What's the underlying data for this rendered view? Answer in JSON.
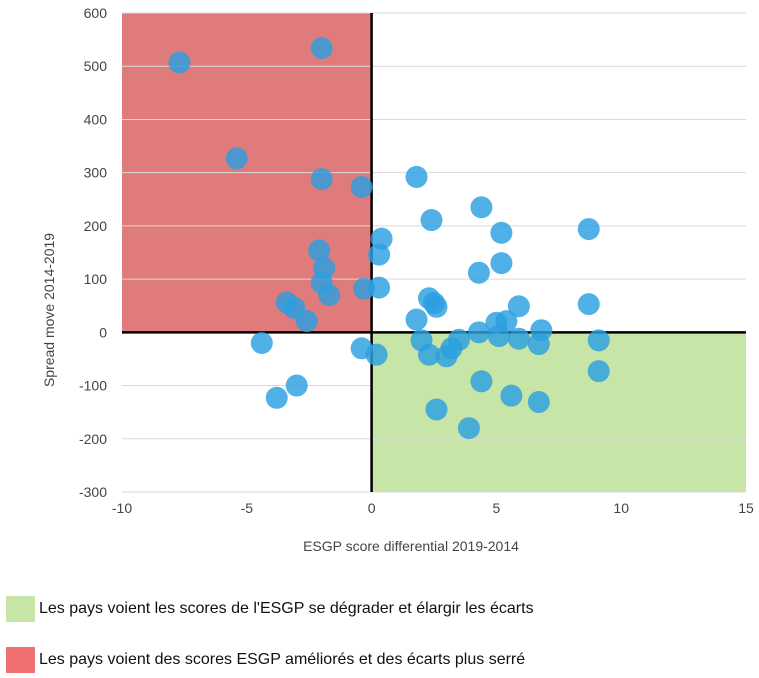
{
  "chart_data": {
    "type": "scatter",
    "xlabel": "ESGP score differential 2019-2014",
    "ylabel": "Spread move 2014-2019",
    "xlim": [
      -10,
      15
    ],
    "ylim": [
      -300,
      600
    ],
    "x_ticks": [
      -10,
      -5,
      0,
      5,
      10,
      15
    ],
    "y_ticks": [
      600,
      500,
      400,
      300,
      200,
      100,
      0,
      -100,
      -200,
      -300
    ],
    "grid": true,
    "colors": {
      "points": "#2b9fe0",
      "quadrant_top_left": "#e07b7b",
      "quadrant_bottom_right": "#c6e5a6",
      "axis": "#000000",
      "grid": "#d9d9d9"
    },
    "points": [
      {
        "x": -7.7,
        "y": 507
      },
      {
        "x": -2.0,
        "y": 534
      },
      {
        "x": -5.4,
        "y": 327
      },
      {
        "x": -2.0,
        "y": 288
      },
      {
        "x": -0.4,
        "y": 273
      },
      {
        "x": -2.1,
        "y": 154
      },
      {
        "x": -1.9,
        "y": 121
      },
      {
        "x": -2.0,
        "y": 93
      },
      {
        "x": -1.7,
        "y": 70
      },
      {
        "x": -3.4,
        "y": 56
      },
      {
        "x": -3.1,
        "y": 46
      },
      {
        "x": -2.6,
        "y": 21
      },
      {
        "x": -0.3,
        "y": 82
      },
      {
        "x": 0.3,
        "y": 84
      },
      {
        "x": 0.3,
        "y": 146
      },
      {
        "x": 0.4,
        "y": 176
      },
      {
        "x": -4.4,
        "y": -20
      },
      {
        "x": -3.0,
        "y": -100
      },
      {
        "x": -3.8,
        "y": -123
      },
      {
        "x": -0.4,
        "y": -30
      },
      {
        "x": 0.2,
        "y": -42
      },
      {
        "x": 1.8,
        "y": 292
      },
      {
        "x": 2.4,
        "y": 211
      },
      {
        "x": 4.4,
        "y": 235
      },
      {
        "x": 5.2,
        "y": 187
      },
      {
        "x": 8.7,
        "y": 194
      },
      {
        "x": 4.3,
        "y": 112
      },
      {
        "x": 5.2,
        "y": 130
      },
      {
        "x": 2.3,
        "y": 64
      },
      {
        "x": 2.5,
        "y": 55
      },
      {
        "x": 2.6,
        "y": 48
      },
      {
        "x": 1.8,
        "y": 24
      },
      {
        "x": 5.9,
        "y": 49
      },
      {
        "x": 8.7,
        "y": 53
      },
      {
        "x": 5.0,
        "y": 18
      },
      {
        "x": 5.4,
        "y": 21
      },
      {
        "x": 4.3,
        "y": 0
      },
      {
        "x": 5.1,
        "y": -7
      },
      {
        "x": 5.9,
        "y": -12
      },
      {
        "x": 6.8,
        "y": 4
      },
      {
        "x": 6.7,
        "y": -22
      },
      {
        "x": 9.1,
        "y": -15
      },
      {
        "x": 2.0,
        "y": -15
      },
      {
        "x": 2.3,
        "y": -42
      },
      {
        "x": 3.0,
        "y": -45
      },
      {
        "x": 3.2,
        "y": -30
      },
      {
        "x": 3.5,
        "y": -14
      },
      {
        "x": 4.4,
        "y": -92
      },
      {
        "x": 5.6,
        "y": -119
      },
      {
        "x": 6.7,
        "y": -131
      },
      {
        "x": 9.1,
        "y": -73
      },
      {
        "x": 2.6,
        "y": -145
      },
      {
        "x": 3.9,
        "y": -180
      }
    ]
  },
  "legend": {
    "items": [
      {
        "label": "Les pays voient les scores de l'ESGP se dégrader et élargir les écarts",
        "color": "#c6e5a6"
      },
      {
        "label": "Les pays voient des scores ESGP améliorés et des écarts plus serré",
        "color": "#ef7070"
      }
    ]
  }
}
